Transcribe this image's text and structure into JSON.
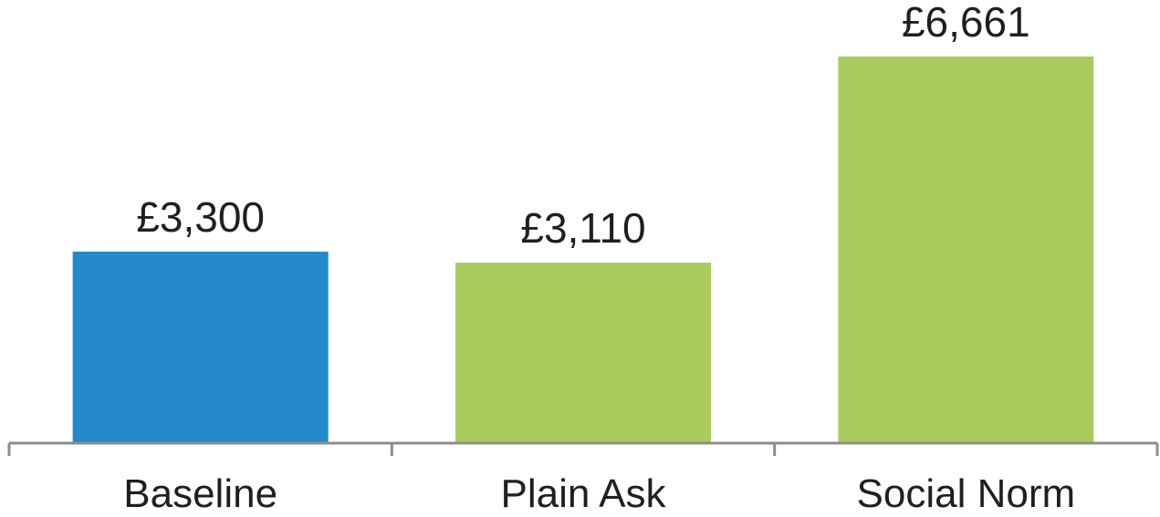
{
  "chart_data": {
    "type": "bar",
    "categories": [
      "Baseline",
      "Plain Ask",
      "Social Norm"
    ],
    "values": [
      3300,
      3110,
      6661
    ],
    "value_labels": [
      "£3,300",
      "£3,110",
      "£6,661"
    ],
    "bar_colors": [
      "#2389c8",
      "#a9cb5d",
      "#a9cb5d"
    ],
    "title": "",
    "xlabel": "",
    "ylabel": "",
    "ylim": [
      0,
      7000
    ],
    "grid": false,
    "legend": "none",
    "axis_color": "#8c8c8c"
  }
}
